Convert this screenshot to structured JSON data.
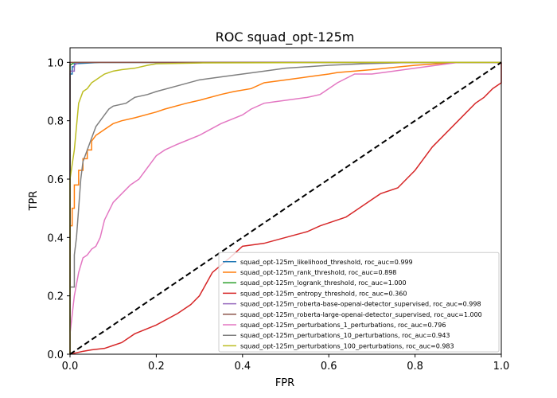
{
  "chart_data": {
    "type": "line",
    "title": "ROC squad_opt-125m",
    "xlabel": "FPR",
    "ylabel": "TPR",
    "xlim": [
      0.0,
      1.0
    ],
    "ylim": [
      0.0,
      1.05
    ],
    "xticks": [
      "0.0",
      "0.2",
      "0.4",
      "0.6",
      "0.8",
      "1.0"
    ],
    "yticks": [
      "0.0",
      "0.2",
      "0.4",
      "0.6",
      "0.8",
      "1.0"
    ],
    "xtick_values": [
      0.0,
      0.2,
      0.4,
      0.6,
      0.8,
      1.0
    ],
    "ytick_values": [
      0.0,
      0.2,
      0.4,
      0.6,
      0.8,
      1.0
    ],
    "grid": false,
    "legend_position": "lower-right",
    "series": [
      {
        "name": "squad_opt-125m_likelihood_threshold, roc_auc=0.999",
        "color": "#1f77b4",
        "x": [
          0.0,
          0.0,
          0.005,
          0.005,
          0.01,
          0.01,
          0.07,
          1.0
        ],
        "y": [
          0.0,
          0.96,
          0.96,
          0.985,
          0.985,
          0.995,
          1.0,
          1.0
        ]
      },
      {
        "name": "squad_opt-125m_rank_threshold, roc_auc=0.898",
        "color": "#ff7f0e",
        "x": [
          0.0,
          0.0,
          0.005,
          0.005,
          0.01,
          0.01,
          0.02,
          0.02,
          0.03,
          0.03,
          0.04,
          0.04,
          0.05,
          0.05,
          0.06,
          0.07,
          0.08,
          0.1,
          0.12,
          0.15,
          0.2,
          0.22,
          0.27,
          0.3,
          0.35,
          0.38,
          0.42,
          0.45,
          0.5,
          0.55,
          0.6,
          0.62,
          0.7,
          0.8,
          0.9,
          1.0
        ],
        "y": [
          0.0,
          0.44,
          0.44,
          0.5,
          0.5,
          0.58,
          0.58,
          0.63,
          0.63,
          0.67,
          0.67,
          0.7,
          0.7,
          0.73,
          0.75,
          0.76,
          0.77,
          0.79,
          0.8,
          0.81,
          0.83,
          0.84,
          0.86,
          0.87,
          0.89,
          0.9,
          0.91,
          0.93,
          0.94,
          0.95,
          0.96,
          0.965,
          0.975,
          0.99,
          1.0,
          1.0
        ]
      },
      {
        "name": "squad_opt-125m_logrank_threshold, roc_auc=1.000",
        "color": "#2ca02c",
        "x": [
          0.0,
          0.0,
          0.01,
          1.0
        ],
        "y": [
          0.0,
          0.99,
          1.0,
          1.0
        ]
      },
      {
        "name": "squad_opt-125m_entropy_threshold, roc_auc=0.360",
        "color": "#d62728",
        "x": [
          0.0,
          0.03,
          0.05,
          0.08,
          0.1,
          0.12,
          0.15,
          0.2,
          0.25,
          0.28,
          0.3,
          0.33,
          0.37,
          0.4,
          0.45,
          0.5,
          0.55,
          0.58,
          0.64,
          0.66,
          0.7,
          0.72,
          0.76,
          0.78,
          0.8,
          0.82,
          0.84,
          0.86,
          0.88,
          0.9,
          0.92,
          0.94,
          0.96,
          0.98,
          1.0,
          1.0
        ],
        "y": [
          0.0,
          0.01,
          0.015,
          0.02,
          0.03,
          0.04,
          0.07,
          0.1,
          0.14,
          0.17,
          0.2,
          0.28,
          0.33,
          0.37,
          0.38,
          0.4,
          0.42,
          0.44,
          0.47,
          0.49,
          0.53,
          0.55,
          0.57,
          0.6,
          0.63,
          0.67,
          0.71,
          0.74,
          0.77,
          0.8,
          0.83,
          0.86,
          0.88,
          0.91,
          0.93,
          1.0
        ]
      },
      {
        "name": "squad_opt-125m_roberta-base-openai-detector_supervised, roc_auc=0.998",
        "color": "#9467bd",
        "x": [
          0.0,
          0.0,
          0.01,
          0.01,
          0.02,
          1.0
        ],
        "y": [
          0.0,
          0.97,
          0.97,
          0.99,
          1.0,
          1.0
        ]
      },
      {
        "name": "squad_opt-125m_roberta-large-openai-detector_supervised, roc_auc=1.000",
        "color": "#8c564b",
        "x": [
          0.0,
          0.0,
          1.0
        ],
        "y": [
          0.0,
          1.0,
          1.0
        ]
      },
      {
        "name": "squad_opt-125m_perturbations_1_perturbations, roc_auc=0.796",
        "color": "#e377c2",
        "x": [
          0.0,
          0.0,
          0.01,
          0.02,
          0.03,
          0.04,
          0.05,
          0.06,
          0.07,
          0.08,
          0.1,
          0.12,
          0.14,
          0.16,
          0.18,
          0.2,
          0.22,
          0.25,
          0.3,
          0.35,
          0.4,
          0.42,
          0.45,
          0.5,
          0.55,
          0.58,
          0.62,
          0.66,
          0.7,
          0.75,
          0.8,
          0.85,
          0.9,
          1.0
        ],
        "y": [
          0.0,
          0.07,
          0.2,
          0.28,
          0.33,
          0.34,
          0.36,
          0.37,
          0.4,
          0.46,
          0.52,
          0.55,
          0.58,
          0.6,
          0.64,
          0.68,
          0.7,
          0.72,
          0.75,
          0.79,
          0.82,
          0.84,
          0.86,
          0.87,
          0.88,
          0.89,
          0.93,
          0.96,
          0.96,
          0.97,
          0.98,
          0.99,
          1.0,
          1.0
        ]
      },
      {
        "name": "squad_opt-125m_perturbations_10_perturbations, roc_auc=0.943",
        "color": "#7f7f7f",
        "x": [
          0.0,
          0.0,
          0.01,
          0.01,
          0.015,
          0.02,
          0.025,
          0.03,
          0.04,
          0.05,
          0.06,
          0.07,
          0.08,
          0.09,
          0.1,
          0.13,
          0.15,
          0.18,
          0.2,
          0.25,
          0.3,
          0.35,
          0.4,
          0.45,
          0.5,
          0.55,
          0.6,
          0.68,
          0.8,
          1.0
        ],
        "y": [
          0.0,
          0.23,
          0.23,
          0.34,
          0.4,
          0.5,
          0.6,
          0.66,
          0.7,
          0.74,
          0.78,
          0.8,
          0.82,
          0.84,
          0.85,
          0.86,
          0.88,
          0.89,
          0.9,
          0.92,
          0.94,
          0.95,
          0.96,
          0.97,
          0.98,
          0.985,
          0.99,
          0.995,
          1.0,
          1.0
        ]
      },
      {
        "name": "squad_opt-125m_perturbations_100_perturbations, roc_auc=0.983",
        "color": "#bcbd22",
        "x": [
          0.0,
          0.0,
          0.005,
          0.01,
          0.015,
          0.02,
          0.025,
          0.03,
          0.04,
          0.05,
          0.06,
          0.07,
          0.08,
          0.1,
          0.12,
          0.15,
          0.18,
          0.2,
          0.3,
          0.5,
          0.7,
          1.0
        ],
        "y": [
          0.0,
          0.6,
          0.65,
          0.7,
          0.78,
          0.86,
          0.88,
          0.9,
          0.91,
          0.93,
          0.94,
          0.95,
          0.96,
          0.97,
          0.975,
          0.98,
          0.99,
          0.995,
          0.998,
          0.999,
          1.0,
          1.0
        ]
      },
      {
        "name": "",
        "color": "#000000",
        "dashed": true,
        "x": [
          0.0,
          1.0
        ],
        "y": [
          0.0,
          1.0
        ]
      }
    ]
  }
}
